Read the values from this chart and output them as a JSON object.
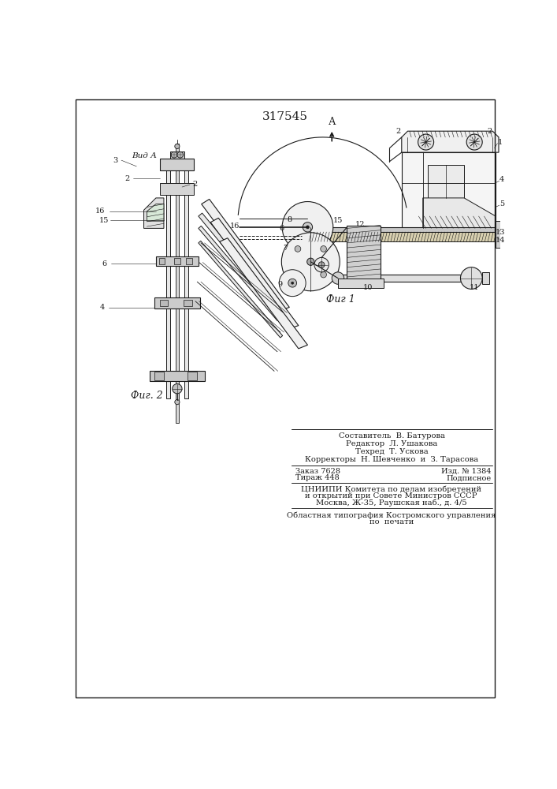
{
  "title_number": "317545",
  "fig1_caption": "Фиг 1",
  "fig2_caption": "Фиг. 2",
  "view_label": "Вид А",
  "arrow_label": "А",
  "credits_line1": "Составитель  В. Батурова",
  "credits_line2": "Редактор  Л. Ушакова",
  "credits_line3": "Техред  Т. Ускова",
  "credits_line4": "Корректоры  Н. Шевченко  и  З. Тарасова",
  "order_line1": "Заказ 7628",
  "order_line2": "Тираж 448",
  "izd_line1": "Изд. № 1384",
  "izd_line2": "Подписное",
  "org_line1": "ЦНИИПИ Комитета по делам изобретений",
  "org_line2": "и открытий при Совете Министров СССР",
  "org_line3": "Москва, Ж-35, Раушская наб., д. 4/5",
  "print_line1": "Областная типография Костромского управления",
  "print_line2": "по  печати",
  "bg_color": "#ffffff",
  "line_color": "#1a1a1a"
}
